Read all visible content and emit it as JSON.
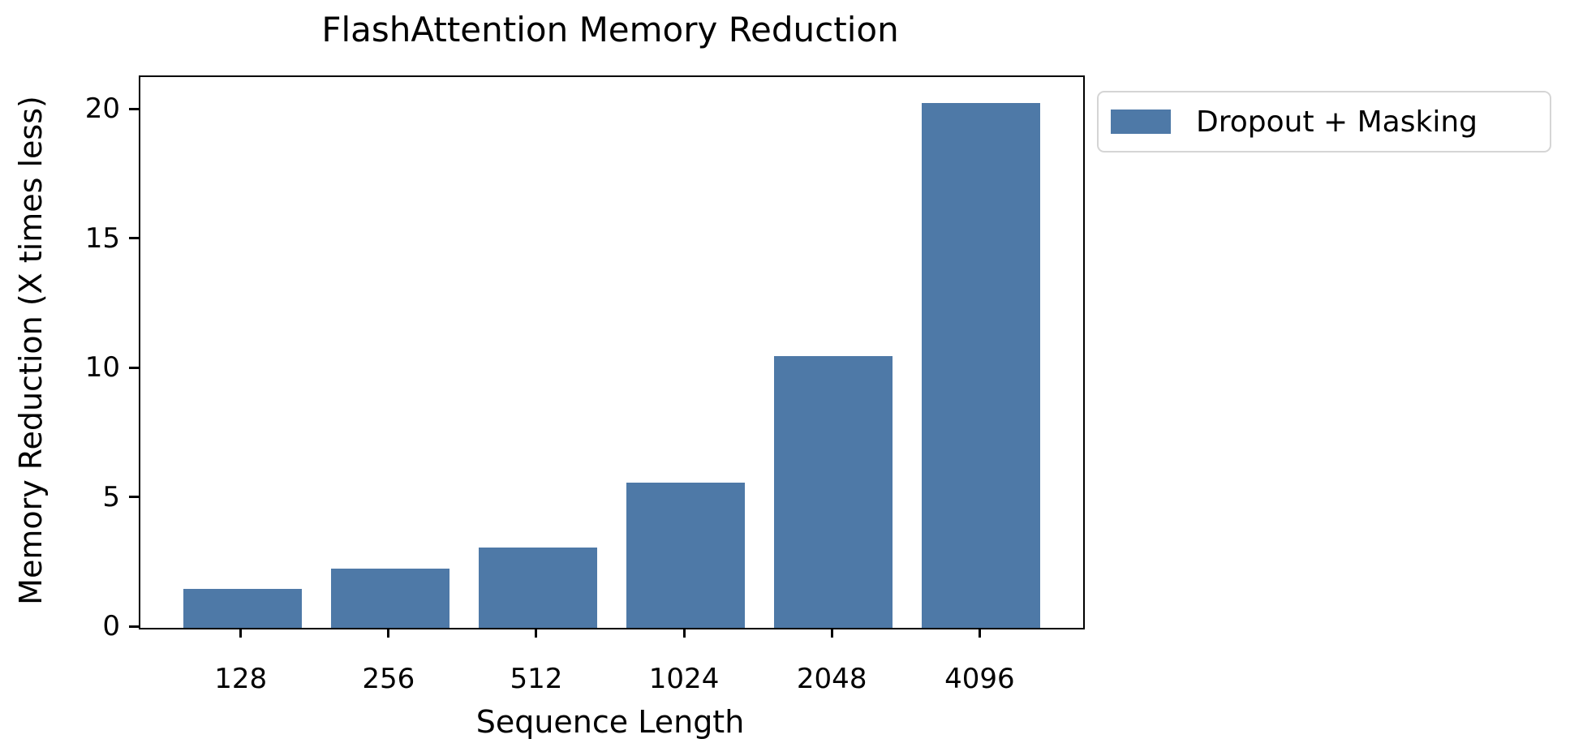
{
  "title": "FlashAttention Memory Reduction",
  "legend": {
    "label": "Dropout + Masking",
    "swatch_color": "#4e79a7",
    "position": "outside upper right"
  },
  "axes": {
    "xlabel": "Sequence Length",
    "ylabel": "Memory Reduction (X times less)"
  },
  "chart_data": {
    "type": "bar",
    "title": "FlashAttention Memory Reduction",
    "xlabel": "Sequence Length",
    "ylabel": "Memory Reduction (X times less)",
    "categories": [
      "128",
      "256",
      "512",
      "1024",
      "2048",
      "4096"
    ],
    "series": [
      {
        "name": "Dropout + Masking",
        "values": [
          1.5,
          2.3,
          3.1,
          5.6,
          10.5,
          20.3
        ]
      }
    ],
    "bar_color": "#4e79a7",
    "ylim": [
      0,
      21.3
    ],
    "yticks": [
      0,
      5,
      10,
      15,
      20
    ],
    "grid": false,
    "legend_position": "upper right, outside plot",
    "bar_width_fraction": 0.8
  }
}
